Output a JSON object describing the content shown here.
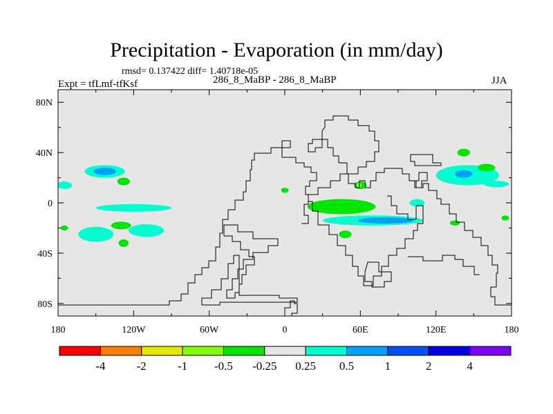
{
  "chart_data": {
    "type": "contour-map",
    "title": "Precipitation - Evaporation (in mm/day)",
    "stats": "rmsd= 0.137422  diff= 1.40718e-05",
    "subtitle": "286_8_MaBP - 286_8_MaBP",
    "left_label": "Expt = tfLmf-tfKsf",
    "right_label": "JJA",
    "x_ticks": [
      {
        "value": -180,
        "label": "180"
      },
      {
        "value": -120,
        "label": "120W"
      },
      {
        "value": -60,
        "label": "60W"
      },
      {
        "value": 0,
        "label": "0"
      },
      {
        "value": 60,
        "label": "60E"
      },
      {
        "value": 120,
        "label": "120E"
      },
      {
        "value": 180,
        "label": "180"
      }
    ],
    "y_ticks": [
      {
        "value": 80,
        "label": "80N"
      },
      {
        "value": 40,
        "label": "40N"
      },
      {
        "value": 0,
        "label": "0"
      },
      {
        "value": -40,
        "label": "40S"
      },
      {
        "value": -80,
        "label": "80S"
      }
    ],
    "xlim": [
      -180,
      180
    ],
    "ylim": [
      -90,
      90
    ],
    "colorbar": {
      "colors": [
        "#ff0000",
        "#ff8000",
        "#e6e600",
        "#80ff00",
        "#00e600",
        "#e6e6e6",
        "#00ffd0",
        "#00a0ff",
        "#0050ff",
        "#0000e6",
        "#8000ff"
      ],
      "labels": [
        "-4",
        "-2",
        "-1",
        "-0.5",
        "-0.25",
        "0.25",
        "0.5",
        "1",
        "2",
        "4"
      ]
    },
    "background_color": "#e6e6e6",
    "anomalies": [
      {
        "name": "n-pacific-positive",
        "level": "0.5",
        "color": "#00ffd0",
        "lon": -143,
        "lat": 25,
        "dlon": 16,
        "dlat": 5
      },
      {
        "name": "n-pacific-positive-core",
        "level": "1",
        "color": "#00a0ff",
        "lon": -143,
        "lat": 25,
        "dlon": 9,
        "dlat": 3
      },
      {
        "name": "n-pacific-negative",
        "level": "-0.25",
        "color": "#00e600",
        "lon": -128,
        "lat": 17,
        "dlon": 5,
        "dlat": 3
      },
      {
        "name": "e-pacific-edge-positive",
        "level": "0.5",
        "color": "#00ffd0",
        "lon": -175,
        "lat": 14,
        "dlon": 6,
        "dlat": 3
      },
      {
        "name": "tropical-pacific-positive",
        "level": "0.5",
        "color": "#00ffd0",
        "lon": -120,
        "lat": -4,
        "dlon": 30,
        "dlat": 3
      },
      {
        "name": "s-pacific-positive-west",
        "level": "0.5",
        "color": "#00ffd0",
        "lon": -150,
        "lat": -25,
        "dlon": 14,
        "dlat": 6
      },
      {
        "name": "s-pacific-positive-east",
        "level": "0.5",
        "color": "#00ffd0",
        "lon": -110,
        "lat": -22,
        "dlon": 14,
        "dlat": 5
      },
      {
        "name": "s-pacific-negative-a",
        "level": "-0.25",
        "color": "#00e600",
        "lon": -130,
        "lat": -18,
        "dlon": 8,
        "dlat": 3
      },
      {
        "name": "s-pacific-negative-b",
        "level": "-0.25",
        "color": "#00e600",
        "lon": -128,
        "lat": -32,
        "dlon": 4,
        "dlat": 3
      },
      {
        "name": "s-pacific-negative-c",
        "level": "-0.25",
        "color": "#00e600",
        "lon": -175,
        "lat": -20,
        "dlon": 3,
        "dlat": 2
      },
      {
        "name": "w-africa-negative",
        "level": "-0.25",
        "color": "#00e600",
        "lon": 0,
        "lat": 10,
        "dlon": 3,
        "dlat": 2
      },
      {
        "name": "tropical-indian-negative",
        "level": "-0.25",
        "color": "#00e600",
        "lon": 45,
        "lat": -3,
        "dlon": 27,
        "dlat": 6
      },
      {
        "name": "tropical-indian-positive",
        "level": "0.5",
        "color": "#00ffd0",
        "lon": 70,
        "lat": -14,
        "dlon": 40,
        "dlat": 4
      },
      {
        "name": "tropical-indian-positive-core",
        "level": "1",
        "color": "#00a0ff",
        "lon": 80,
        "lat": -14,
        "dlon": 22,
        "dlat": 2.5
      },
      {
        "name": "arabian-negative",
        "level": "-0.25",
        "color": "#00e600",
        "lon": 60,
        "lat": 14,
        "dlon": 5,
        "dlat": 3
      },
      {
        "name": "arabian-moderate-negative",
        "level": "-0.5",
        "color": "#80ff00",
        "lon": 59,
        "lat": 14,
        "dlon": 2,
        "dlat": 2
      },
      {
        "name": "s-indian-negative",
        "level": "-0.25",
        "color": "#00e600",
        "lon": 48,
        "lat": -25,
        "dlon": 5,
        "dlat": 3
      },
      {
        "name": "w-pacific-positive",
        "level": "0.5",
        "color": "#00ffd0",
        "lon": 145,
        "lat": 22,
        "dlon": 25,
        "dlat": 8
      },
      {
        "name": "w-pacific-positive-core",
        "level": "1",
        "color": "#00a0ff",
        "lon": 142,
        "lat": 23,
        "dlon": 7,
        "dlat": 3
      },
      {
        "name": "w-pacific-negative-a",
        "level": "-0.25",
        "color": "#00e600",
        "lon": 160,
        "lat": 28,
        "dlon": 7,
        "dlat": 3
      },
      {
        "name": "w-pacific-negative-b",
        "level": "-0.25",
        "color": "#00e600",
        "lon": 142,
        "lat": 40,
        "dlon": 5,
        "dlat": 3
      },
      {
        "name": "w-pacific-positive-east",
        "level": "0.5",
        "color": "#00ffd0",
        "lon": 168,
        "lat": 15,
        "dlon": 10,
        "dlat": 2.5
      },
      {
        "name": "w-pacific-positive-west",
        "level": "0.5",
        "color": "#00ffd0",
        "lon": 105,
        "lat": 0,
        "dlon": 6,
        "dlat": 3
      },
      {
        "name": "sw-pacific-negative",
        "level": "-0.25",
        "color": "#00e600",
        "lon": 135,
        "lat": -16,
        "dlon": 4,
        "dlat": 2
      },
      {
        "name": "s-pacific-east-negative",
        "level": "-0.25",
        "color": "#00e600",
        "lon": 175,
        "lat": -12,
        "dlon": 3,
        "dlat": 2
      }
    ]
  }
}
